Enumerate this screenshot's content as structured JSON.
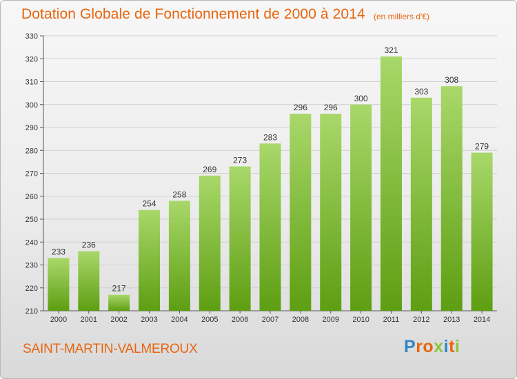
{
  "title": "Dotation Globale de Fonctionnement de 2000 à 2014",
  "unit_note": "(en milliers d'€)",
  "commune": "SAINT-MARTIN-VALMEROUX",
  "logo": {
    "letters": [
      "P",
      "r",
      "o",
      "x",
      "i",
      "t",
      "i"
    ],
    "colors": [
      "#2e86c8",
      "#e8650f",
      "#e8650f",
      "#8cc63f",
      "#2e86c8",
      "#e8650f",
      "#8cc63f"
    ]
  },
  "colors": {
    "title": "#e8650f",
    "bar_top": "#a8d86a",
    "bar_bottom": "#5e9e12",
    "grid": "#cfcfcf"
  },
  "chart_data": {
    "type": "bar",
    "title": "Dotation Globale de Fonctionnement de 2000 à 2014",
    "subtitle": "(en milliers d'€)",
    "categories": [
      "2000",
      "2001",
      "2002",
      "2003",
      "2004",
      "2005",
      "2006",
      "2007",
      "2008",
      "2009",
      "2010",
      "2011",
      "2012",
      "2013",
      "2014"
    ],
    "values": [
      233,
      236,
      217,
      254,
      258,
      269,
      273,
      283,
      296,
      296,
      300,
      321,
      303,
      308,
      279
    ],
    "ylim": [
      210,
      330
    ],
    "yticks": [
      210,
      220,
      230,
      240,
      250,
      260,
      270,
      280,
      290,
      300,
      310,
      320,
      330
    ],
    "grid": true
  }
}
